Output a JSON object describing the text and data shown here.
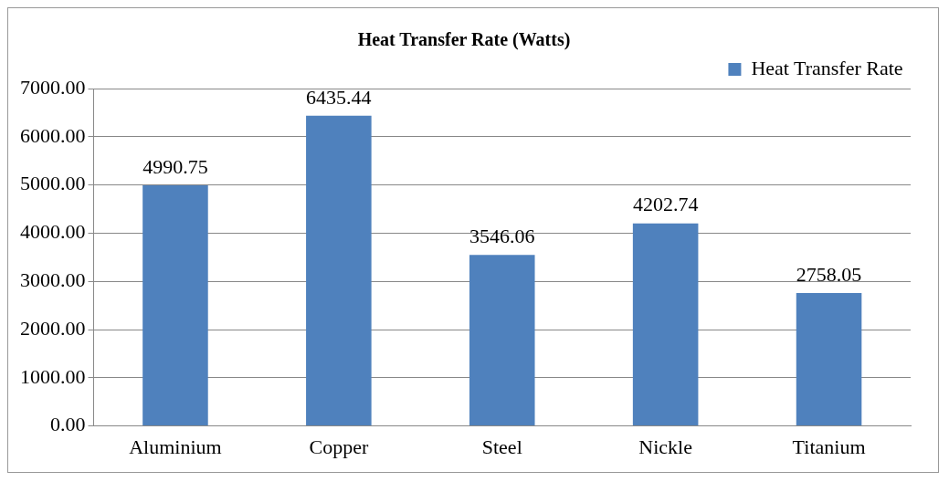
{
  "chart_data": {
    "type": "bar",
    "title": "Heat Transfer Rate (Watts)",
    "categories": [
      "Aluminium",
      "Copper",
      "Steel",
      "Nickle",
      "Titanium"
    ],
    "series": [
      {
        "name": "Heat Transfer Rate",
        "color": "#4f81bd",
        "values": [
          4990.75,
          6435.44,
          3546.06,
          4202.74,
          2758.05
        ]
      }
    ],
    "ylim": [
      0,
      7000
    ],
    "yticks": [
      {
        "value": 0,
        "label": "0.00"
      },
      {
        "value": 1000,
        "label": "1000.00"
      },
      {
        "value": 2000,
        "label": "2000.00"
      },
      {
        "value": 3000,
        "label": "3000.00"
      },
      {
        "value": 4000,
        "label": "4000.00"
      },
      {
        "value": 5000,
        "label": "5000.00"
      },
      {
        "value": 6000,
        "label": "6000.00"
      },
      {
        "value": 7000,
        "label": "7000.00"
      }
    ],
    "grid": "y",
    "legend": "top right",
    "data_labels": true
  }
}
